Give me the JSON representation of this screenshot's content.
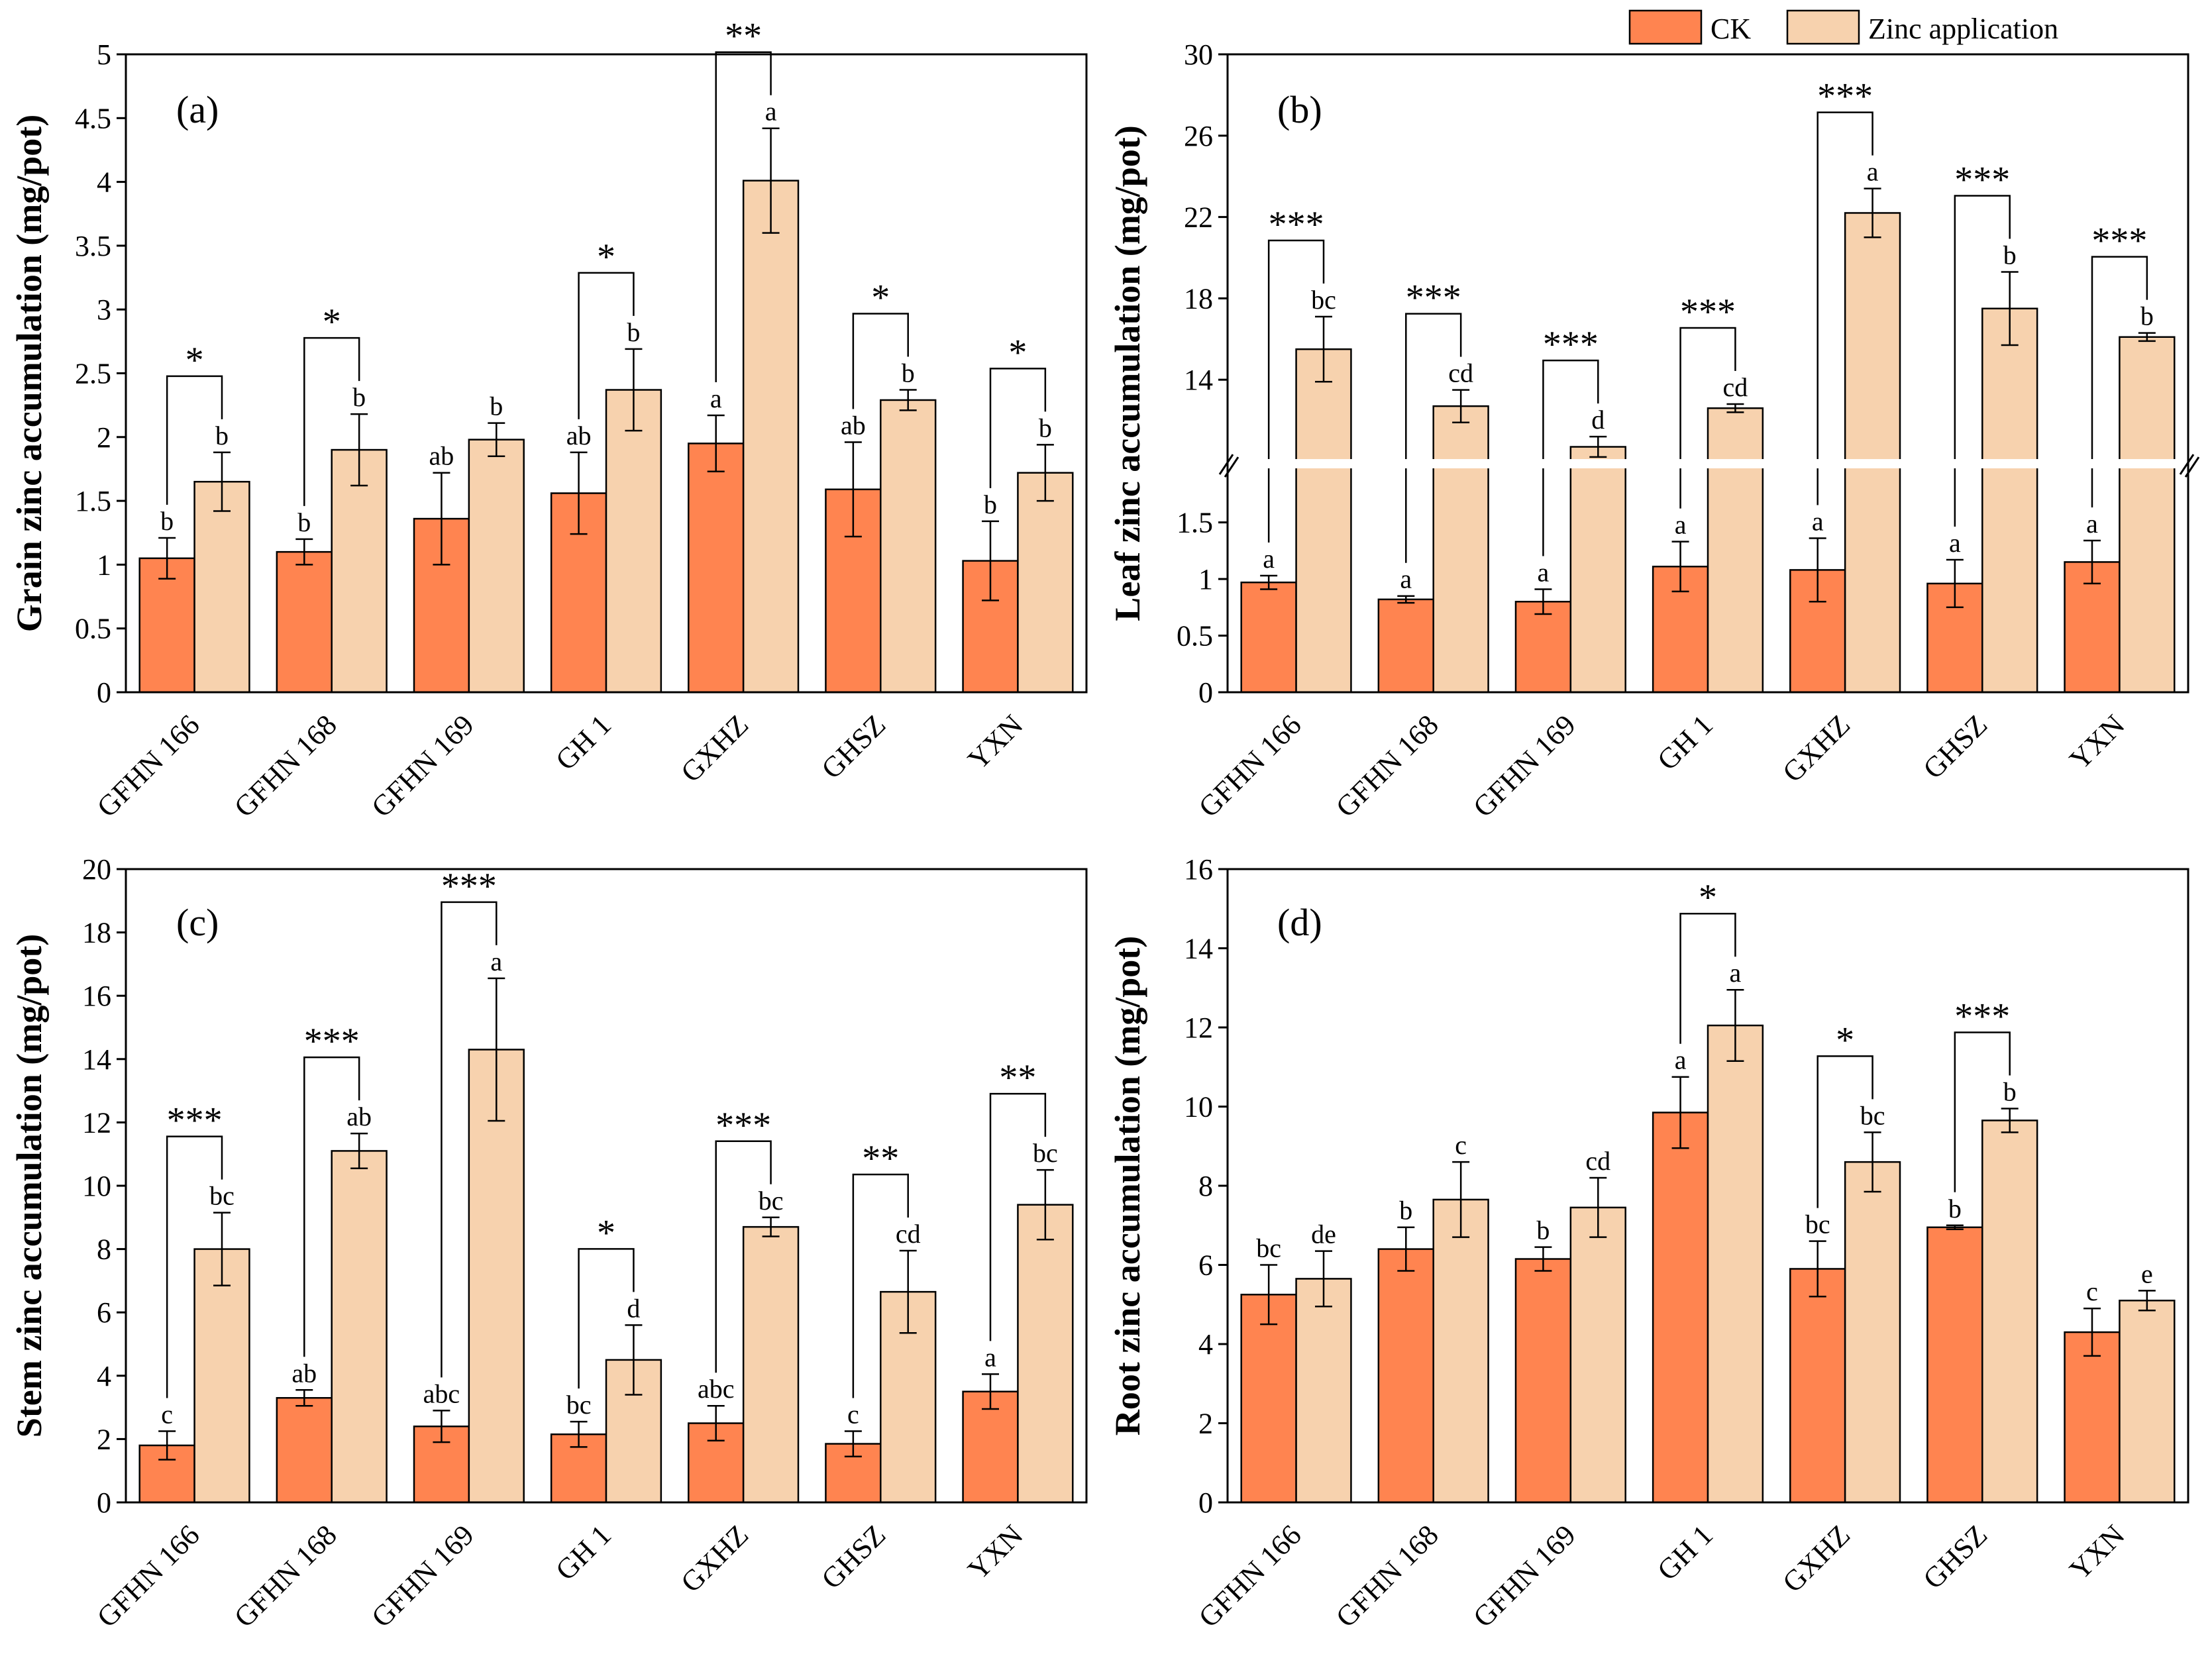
{
  "colors": {
    "ck": "#FF8450",
    "zinc": "#F7D2AE",
    "axis": "#000000",
    "break": "#ffffff"
  },
  "legend": {
    "ck_label": "CK",
    "zinc_label": "Zinc application"
  },
  "chart_data": [
    {
      "type": "bar",
      "panel": "(a)",
      "ylabel": "Grain zinc accumulation (mg/pot)",
      "ylim": [
        0,
        5
      ],
      "yticks": [
        "0",
        "0.5",
        "1",
        "1.5",
        "2",
        "2.5",
        "3",
        "3.5",
        "4",
        "4.5",
        "5"
      ],
      "categories": [
        "GFHN 166",
        "GFHN 168",
        "GFHN 169",
        "GH 1",
        "GXHZ",
        "GHSZ",
        "YXN"
      ],
      "series": [
        {
          "name": "CK",
          "values": [
            1.05,
            1.1,
            1.36,
            1.56,
            1.95,
            1.59,
            1.03
          ],
          "errors": [
            0.16,
            0.1,
            0.36,
            0.32,
            0.22,
            0.37,
            0.31
          ],
          "letters": [
            "b",
            "b",
            "ab",
            "ab",
            "a",
            "ab",
            "b"
          ]
        },
        {
          "name": "Zinc application",
          "values": [
            1.65,
            1.9,
            1.98,
            2.37,
            4.01,
            2.29,
            1.72
          ],
          "errors": [
            0.23,
            0.28,
            0.13,
            0.32,
            0.41,
            0.08,
            0.22
          ],
          "letters": [
            "b",
            "b",
            "b",
            "b",
            "a",
            "b",
            "b"
          ]
        }
      ],
      "significance": [
        "*",
        "*",
        "",
        "*",
        "**",
        "*",
        "*"
      ]
    },
    {
      "type": "bar",
      "panel": "(b)",
      "ylabel": "Leaf zinc accumulation (mg/pot)",
      "broken_axis": true,
      "lower_ylim": [
        0,
        2
      ],
      "upper_ylim": [
        10,
        30
      ],
      "lower_yticks": [
        "0",
        "0.5",
        "1",
        "1.5"
      ],
      "upper_yticks": [
        "14",
        "18",
        "22",
        "26",
        "30"
      ],
      "categories": [
        "GFHN 166",
        "GFHN 168",
        "GFHN 169",
        "GH 1",
        "GXHZ",
        "GHSZ",
        "YXN"
      ],
      "series": [
        {
          "name": "CK",
          "values": [
            0.97,
            0.82,
            0.8,
            1.11,
            1.08,
            0.96,
            1.15
          ],
          "errors": [
            0.06,
            0.03,
            0.11,
            0.22,
            0.28,
            0.21,
            0.19
          ],
          "letters": [
            "a",
            "a",
            "a",
            "a",
            "a",
            "a",
            "a"
          ]
        },
        {
          "name": "Zinc application",
          "values": [
            15.5,
            12.7,
            10.7,
            12.6,
            22.2,
            17.5,
            16.1
          ],
          "errors": [
            1.6,
            0.8,
            0.5,
            0.2,
            1.2,
            1.8,
            0.2
          ],
          "letters": [
            "bc",
            "cd",
            "d",
            "cd",
            "a",
            "b",
            "b"
          ]
        }
      ],
      "significance": [
        "***",
        "***",
        "***",
        "***",
        "***",
        "***",
        "***"
      ]
    },
    {
      "type": "bar",
      "panel": "(c)",
      "ylabel": "Stem zinc accumulation (mg/pot)",
      "ylim": [
        0,
        20
      ],
      "yticks": [
        "0",
        "2",
        "4",
        "6",
        "8",
        "10",
        "12",
        "14",
        "16",
        "18",
        "20"
      ],
      "categories": [
        "GFHN 166",
        "GFHN 168",
        "GFHN 169",
        "GH 1",
        "GXHZ",
        "GHSZ",
        "YXN"
      ],
      "series": [
        {
          "name": "CK",
          "values": [
            1.8,
            3.3,
            2.4,
            2.15,
            2.5,
            1.85,
            3.5
          ],
          "errors": [
            0.45,
            0.25,
            0.5,
            0.4,
            0.55,
            0.4,
            0.55
          ],
          "letters": [
            "c",
            "ab",
            "abc",
            "bc",
            "abc",
            "c",
            "a"
          ]
        },
        {
          "name": "Zinc application",
          "values": [
            8.0,
            11.1,
            14.3,
            4.5,
            8.7,
            6.65,
            9.4
          ],
          "errors": [
            1.15,
            0.55,
            2.25,
            1.1,
            0.3,
            1.3,
            1.1
          ],
          "letters": [
            "bc",
            "ab",
            "a",
            "d",
            "bc",
            "cd",
            "bc"
          ]
        }
      ],
      "significance": [
        "***",
        "***",
        "***",
        "*",
        "***",
        "**",
        "**"
      ]
    },
    {
      "type": "bar",
      "panel": "(d)",
      "ylabel": "Root zinc accumulation (mg/pot)",
      "ylim": [
        0,
        16
      ],
      "yticks": [
        "0",
        "2",
        "4",
        "6",
        "8",
        "10",
        "12",
        "14",
        "16"
      ],
      "categories": [
        "GFHN 166",
        "GFHN 168",
        "GFHN 169",
        "GH 1",
        "GXHZ",
        "GHSZ",
        "YXN"
      ],
      "series": [
        {
          "name": "CK",
          "values": [
            5.25,
            6.4,
            6.15,
            9.85,
            5.9,
            6.95,
            4.3
          ],
          "errors": [
            0.75,
            0.55,
            0.3,
            0.9,
            0.7,
            0.05,
            0.6
          ],
          "letters": [
            "bc",
            "b",
            "b",
            "a",
            "bc",
            "b",
            "c"
          ]
        },
        {
          "name": "Zinc application",
          "values": [
            5.65,
            7.65,
            7.45,
            12.05,
            8.6,
            9.65,
            5.1
          ],
          "errors": [
            0.7,
            0.95,
            0.75,
            0.9,
            0.75,
            0.3,
            0.25
          ],
          "letters": [
            "de",
            "c",
            "cd",
            "a",
            "bc",
            "b",
            "e"
          ]
        }
      ],
      "significance": [
        "",
        "",
        "",
        "*",
        "*",
        "***",
        ""
      ]
    }
  ]
}
